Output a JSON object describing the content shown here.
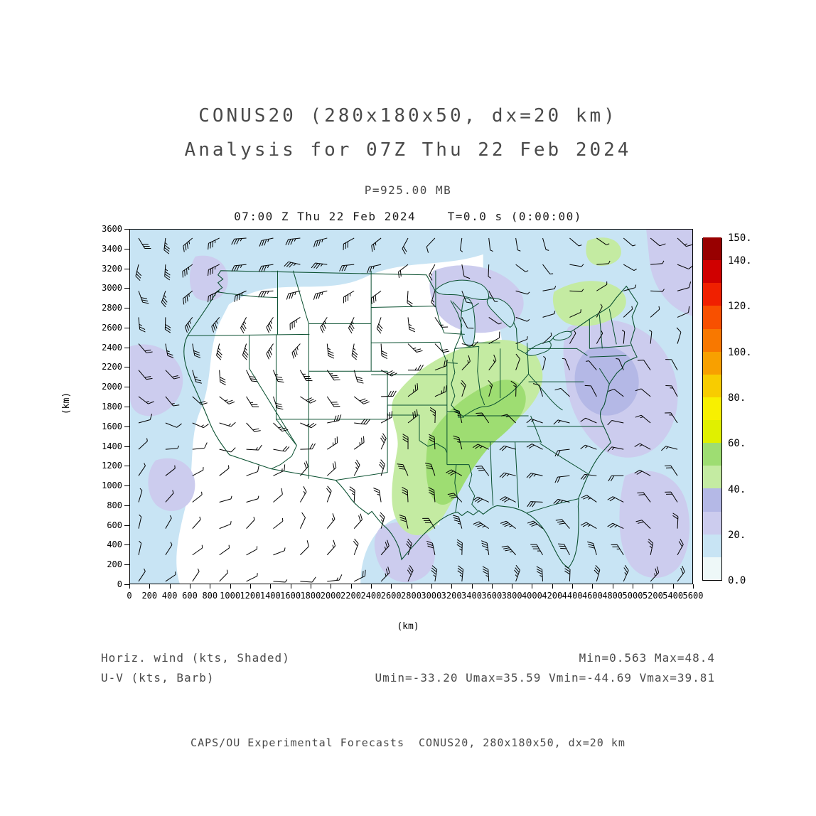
{
  "title": {
    "line1": "CONUS20 (280x180x50, dx=20 km)",
    "line2": "Analysis for 07Z Thu 22 Feb 2024"
  },
  "subtitle": "P=925.00 MB",
  "time_line": "07:00 Z Thu 22 Feb 2024    T=0.0 s (0:00:00)",
  "axes": {
    "x_label": "(km)",
    "y_label": "(km)",
    "x_ticks": [
      0,
      200,
      400,
      600,
      800,
      1000,
      1200,
      1400,
      1600,
      1800,
      2000,
      2200,
      2400,
      2600,
      2800,
      3000,
      3200,
      3400,
      3600,
      3800,
      4000,
      4200,
      4400,
      4600,
      4800,
      5000,
      5200,
      5400,
      5600
    ],
    "y_ticks": [
      0,
      200,
      400,
      600,
      800,
      1000,
      1200,
      1400,
      1600,
      1800,
      2000,
      2200,
      2400,
      2600,
      2800,
      3000,
      3200,
      3400,
      3600
    ]
  },
  "colorbar": {
    "max_value": 150,
    "tick_labels": [
      {
        "label": "0.0",
        "value": 0
      },
      {
        "label": "20.",
        "value": 20
      },
      {
        "label": "40.",
        "value": 40
      },
      {
        "label": "60.",
        "value": 60
      },
      {
        "label": "80.",
        "value": 80
      },
      {
        "label": "100.",
        "value": 100
      },
      {
        "label": "120.",
        "value": 120
      },
      {
        "label": "140.",
        "value": 140
      },
      {
        "label": "150.",
        "value": 150
      }
    ],
    "colors": [
      "#eef8f8",
      "#c8e4f4",
      "#ccccee",
      "#b4b8e6",
      "#c4eba2",
      "#9edd72",
      "#e0f000",
      "#f8f000",
      "#f8cc00",
      "#f8a000",
      "#f87800",
      "#f85000",
      "#f02000",
      "#d00000",
      "#980000"
    ]
  },
  "annotations": {
    "field_label": "Horiz. wind (kts, Shaded)",
    "barb_label": "U-V (kts, Barb)",
    "minmax": "Min=0.563 Max=48.4",
    "uv_minmax": "Umin=-33.20 Umax=35.59 Vmin=-44.69 Vmax=39.81"
  },
  "footer": "CAPS/OU Experimental Forecasts  CONUS20, 280x180x50, dx=20 km",
  "colors": {
    "title_text": "#4a4a4a",
    "time_text": "#1a1a1a",
    "annotation_text": "#4a4a4a",
    "tick_text": "#000000",
    "map_outline": "#0a5030",
    "barb": "#000000",
    "frame": "#000000"
  },
  "chart_data": {
    "type": "heatmap",
    "title": "CONUS20 (280x180x50, dx=20 km) Analysis for 07Z Thu 22 Feb 2024",
    "field": "Horizontal wind speed (shaded)",
    "units": "kts",
    "level": "P=925.00 MB",
    "valid_time": "07:00 Z Thu 22 Feb 2024",
    "forecast_time": "T=0.0 s (0:00:00)",
    "grid": "280x180x50, dx=20 km",
    "xlabel": "(km)",
    "ylabel": "(km)",
    "x_range_km": [
      0,
      5600
    ],
    "y_range_km": [
      0,
      3600
    ],
    "x_tick_step_km": 200,
    "y_tick_step_km": 200,
    "shade_levels_kts": [
      0,
      10,
      20,
      30,
      40,
      50,
      60,
      70,
      80,
      90,
      100,
      110,
      120,
      130,
      140,
      150
    ],
    "legend_position": "right colorbar",
    "grid_lines": false,
    "stats": {
      "min": 0.563,
      "max": 48.4,
      "umin": -33.2,
      "umax": 35.59,
      "vmin": -44.69,
      "vmax": 39.81
    },
    "overlays": [
      "US state borders (dark green)",
      "wind barbs U-V (kts, black)"
    ],
    "shaded_regions_summary": [
      {
        "area": "Pacific ocean / west coast",
        "value_kts": "10-30"
      },
      {
        "area": "northern plains / Canada border strip",
        "value_kts": "10-20"
      },
      {
        "area": "Great Lakes region",
        "value_kts": "20-30"
      },
      {
        "area": "lower Mississippi valley through Tennessee/Kentucky",
        "value_kts": "40-50"
      },
      {
        "area": "Northeast / New England streak",
        "value_kts": "40-50"
      },
      {
        "area": "Atlantic offshore east coast",
        "value_kts": "20-40"
      },
      {
        "area": "south Texas / Gulf",
        "value_kts": "20-30"
      },
      {
        "area": "central plains and interior west",
        "value_kts": "0-10"
      }
    ]
  }
}
